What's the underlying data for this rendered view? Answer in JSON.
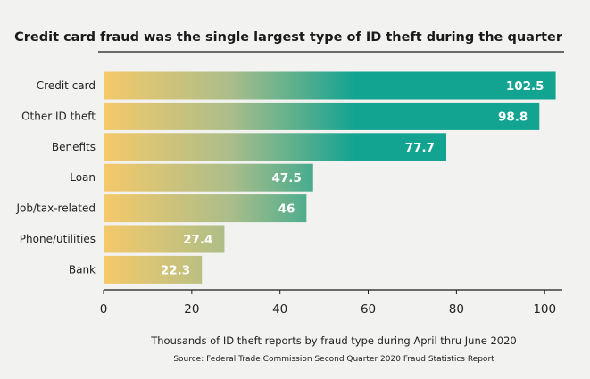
{
  "chart_data": {
    "type": "bar",
    "orientation": "horizontal",
    "title": "Credit card fraud was the single largest type of ID theft during the quarter",
    "categories": [
      "Credit card",
      "Other ID theft",
      "Benefits",
      "Loan",
      "Job/tax-related",
      "Phone/utilities",
      "Bank"
    ],
    "values": [
      102.5,
      98.8,
      77.7,
      47.5,
      46,
      27.4,
      22.3
    ],
    "value_labels": [
      "102.5",
      "98.8",
      "77.7",
      "47.5",
      "46",
      "27.4",
      "22.3"
    ],
    "xlim": [
      0,
      104
    ],
    "xticks": [
      0,
      20,
      40,
      60,
      80,
      100
    ],
    "xtick_labels": [
      "0",
      "20",
      "40",
      "60",
      "80",
      "100"
    ],
    "xlabel": "Thousands of ID theft reports by fraud type during April thru June 2020",
    "source": "Source: Federal Trade Commission Second Quarter 2020 Fraud Statistics Report",
    "grid": false,
    "colors": {
      "gradient_start": "#f5c96a",
      "gradient_mid": "#a9bd8a",
      "gradient_end": "#12a391",
      "bar_light": "#7fcfc4",
      "background": "#f2f2f0",
      "axis": "#1a1a1a",
      "value_text": "#ffffff"
    }
  }
}
